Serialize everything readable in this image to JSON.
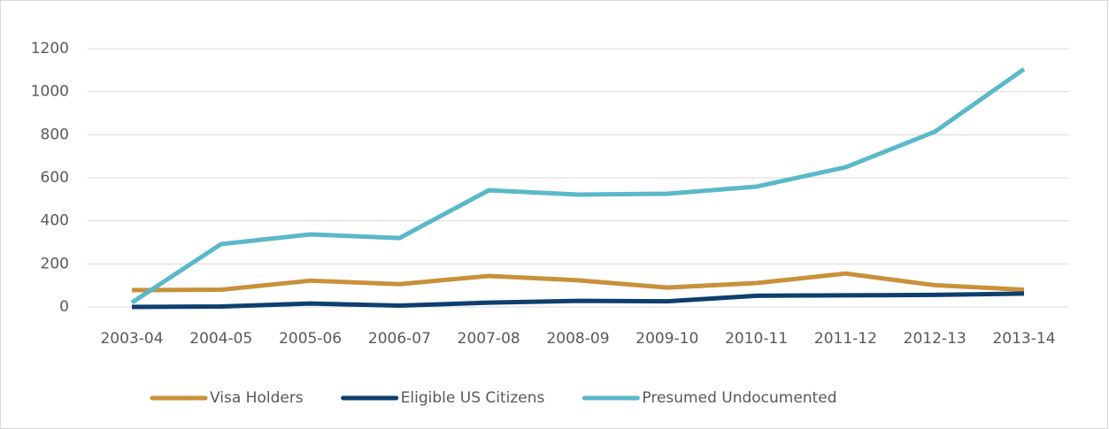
{
  "chart_data": {
    "type": "line",
    "categories": [
      "2003-04",
      "2004-05",
      "2005-06",
      "2006-07",
      "2007-08",
      "2008-09",
      "2009-10",
      "2010-11",
      "2011-12",
      "2012-13",
      "2013-14"
    ],
    "series": [
      {
        "name": "Visa Holders",
        "color": "#c8913a",
        "values": [
          78,
          80,
          122,
          106,
          144,
          124,
          90,
          111,
          155,
          101,
          80
        ]
      },
      {
        "name": "Eligible US Citizens",
        "color": "#0e3f6e",
        "values": [
          0,
          2,
          16,
          6,
          20,
          28,
          26,
          52,
          54,
          56,
          62
        ]
      },
      {
        "name": "Presumed Undocumented",
        "color": "#5bb8c9",
        "values": [
          20,
          292,
          337,
          320,
          542,
          522,
          526,
          559,
          649,
          814,
          1105
        ]
      }
    ],
    "ylim": [
      0,
      1200
    ],
    "yticks": [
      0,
      200,
      400,
      600,
      800,
      1000,
      1200
    ],
    "grid": true,
    "legend": "bottom"
  }
}
